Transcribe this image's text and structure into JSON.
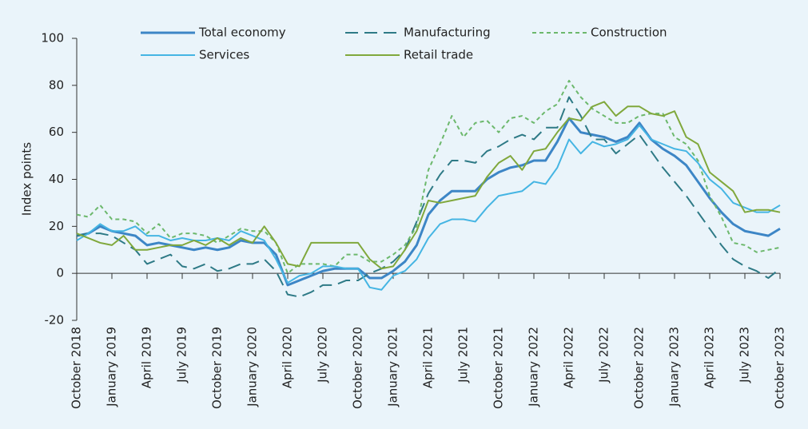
{
  "chart_data": {
    "type": "line",
    "y_label": "Index points",
    "categories": [
      "October 2018",
      null,
      null,
      "January 2019",
      null,
      null,
      "April 2019",
      null,
      null,
      "July 2019",
      null,
      null,
      "October 2019",
      null,
      null,
      "January 2020",
      null,
      null,
      "April 2020",
      null,
      null,
      "July 2020",
      null,
      null,
      "October 2020",
      null,
      null,
      "January 2021",
      null,
      null,
      "April 2021",
      null,
      null,
      "July 2021",
      null,
      null,
      "October 2021",
      null,
      null,
      "January 2022",
      null,
      null,
      "April 2022",
      null,
      null,
      "July 2022",
      null,
      null,
      "October 2022",
      null,
      null,
      "January 2023",
      null,
      null,
      "April 2023",
      null,
      null,
      "July 2023",
      null,
      null,
      "October 2023"
    ],
    "series": [
      {
        "name": "Total economy",
        "color": "#3d86c6",
        "style": "solid",
        "values": [
          16,
          17,
          20,
          18,
          17,
          16,
          12,
          13,
          12,
          11,
          10,
          11,
          10,
          11,
          14,
          13,
          13,
          8,
          -5,
          -3,
          -1,
          1,
          2,
          2,
          2,
          -2,
          -2,
          1,
          5,
          12,
          25,
          31,
          35,
          35,
          35,
          40,
          43,
          45,
          46,
          48,
          48,
          56,
          66,
          60,
          59,
          58,
          56,
          58,
          64,
          57,
          53,
          50,
          46,
          39,
          32,
          26,
          21,
          18,
          17,
          16,
          19
        ]
      },
      {
        "name": "Manufacturing",
        "color": "#2e7a86",
        "style": "dashed",
        "values": [
          16,
          17,
          17,
          16,
          13,
          10,
          4,
          6,
          8,
          3,
          2,
          4,
          1,
          2,
          4,
          4,
          6,
          1,
          -9,
          -10,
          -8,
          -5,
          -5,
          -3,
          -3,
          0,
          2,
          5,
          10,
          22,
          34,
          42,
          48,
          48,
          47,
          52,
          54,
          57,
          59,
          57,
          62,
          62,
          75,
          67,
          57,
          57,
          51,
          55,
          59,
          52,
          45,
          39,
          33,
          26,
          19,
          12,
          6,
          3,
          1,
          -2,
          2
        ]
      },
      {
        "name": "Construction",
        "color": "#6cb86c",
        "style": "dotted",
        "values": [
          25,
          24,
          29,
          23,
          23,
          22,
          17,
          21,
          15,
          17,
          17,
          16,
          13,
          16,
          19,
          18,
          18,
          13,
          0,
          4,
          4,
          4,
          3,
          8,
          8,
          5,
          5,
          8,
          12,
          20,
          44,
          55,
          67,
          58,
          64,
          65,
          60,
          66,
          67,
          64,
          69,
          72,
          82,
          75,
          70,
          67,
          64,
          64,
          67,
          68,
          68,
          58,
          55,
          48,
          33,
          24,
          13,
          12,
          9,
          10,
          11
        ]
      },
      {
        "name": "Services",
        "color": "#45b5e3",
        "style": "solid",
        "values": [
          14,
          17,
          21,
          18,
          18,
          20,
          16,
          16,
          14,
          15,
          14,
          14,
          15,
          14,
          18,
          16,
          14,
          6,
          -4,
          -1,
          0,
          3,
          3,
          2,
          2,
          -6,
          -7,
          -1,
          1,
          6,
          15,
          21,
          23,
          23,
          22,
          28,
          33,
          34,
          35,
          39,
          38,
          45,
          57,
          51,
          56,
          54,
          55,
          57,
          63,
          57,
          55,
          53,
          52,
          47,
          40,
          36,
          30,
          28,
          26,
          26,
          29
        ]
      },
      {
        "name": "Retail trade",
        "color": "#80a83c",
        "style": "solid",
        "values": [
          17,
          15,
          13,
          12,
          16,
          10,
          10,
          11,
          12,
          12,
          14,
          12,
          15,
          12,
          15,
          13,
          20,
          13,
          4,
          3,
          13,
          13,
          13,
          13,
          13,
          6,
          2,
          3,
          10,
          18,
          31,
          30,
          31,
          32,
          33,
          41,
          47,
          50,
          44,
          52,
          53,
          60,
          66,
          65,
          71,
          73,
          67,
          71,
          71,
          68,
          67,
          69,
          58,
          55,
          43,
          39,
          35,
          26,
          27,
          27,
          26
        ]
      }
    ],
    "ylim": [
      -20,
      100
    ],
    "yticks": [
      -20,
      0,
      20,
      40,
      60,
      80,
      100
    ],
    "grid": false
  }
}
